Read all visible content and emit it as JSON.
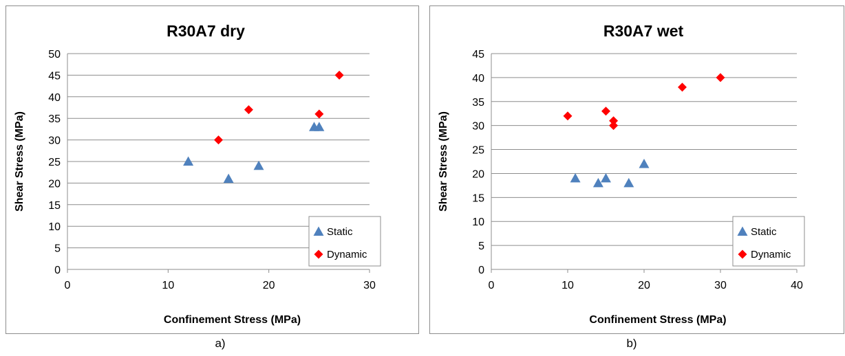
{
  "chart_data": [
    {
      "type": "scatter",
      "title": "R30A7 dry",
      "xlabel": "Confinement Stress (MPa)",
      "ylabel": "Shear Stress (MPa)",
      "xlim": [
        0,
        30
      ],
      "ylim": [
        0,
        50
      ],
      "xticks": [
        0,
        10,
        20,
        30
      ],
      "yticks": [
        0,
        5,
        10,
        15,
        20,
        25,
        30,
        35,
        40,
        45,
        50
      ],
      "grid": "horizontal",
      "legend": "bottom-right",
      "caption": "a)",
      "series": [
        {
          "name": "Static",
          "marker": "triangle",
          "color": "#4f81bd",
          "points": [
            [
              12,
              25
            ],
            [
              16,
              21
            ],
            [
              19,
              24
            ],
            [
              24.5,
              33
            ],
            [
              25,
              33
            ]
          ]
        },
        {
          "name": "Dynamic",
          "marker": "diamond",
          "color": "#ff0000",
          "points": [
            [
              15,
              30
            ],
            [
              18,
              37
            ],
            [
              25,
              36
            ],
            [
              27,
              45
            ]
          ]
        }
      ]
    },
    {
      "type": "scatter",
      "title": "R30A7 wet",
      "xlabel": "Confinement Stress (MPa)",
      "ylabel": "Shear Stress (MPa)",
      "xlim": [
        0,
        40
      ],
      "ylim": [
        0,
        45
      ],
      "xticks": [
        0,
        10,
        20,
        30,
        40
      ],
      "yticks": [
        0,
        5,
        10,
        15,
        20,
        25,
        30,
        35,
        40,
        45
      ],
      "grid": "horizontal",
      "legend": "bottom-right",
      "caption": "b)",
      "series": [
        {
          "name": "Static",
          "marker": "triangle",
          "color": "#4f81bd",
          "points": [
            [
              11,
              19
            ],
            [
              14,
              18
            ],
            [
              15,
              19
            ],
            [
              18,
              18
            ],
            [
              20,
              22
            ]
          ]
        },
        {
          "name": "Dynamic",
          "marker": "diamond",
          "color": "#ff0000",
          "points": [
            [
              10,
              32
            ],
            [
              15,
              33
            ],
            [
              16,
              31
            ],
            [
              16,
              30
            ],
            [
              25,
              38
            ],
            [
              30,
              40
            ]
          ]
        }
      ]
    }
  ]
}
